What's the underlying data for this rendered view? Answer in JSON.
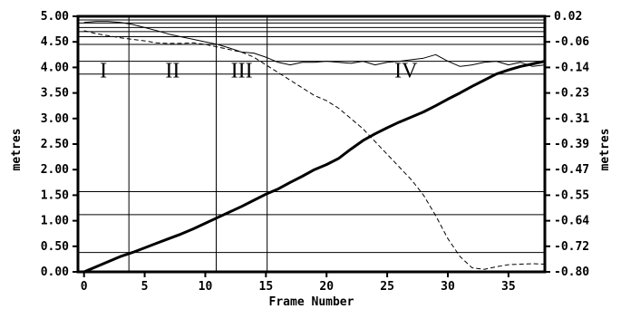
{
  "chart_data": {
    "type": "line",
    "xlabel": "Frame Number",
    "ylabel_left": "metres",
    "ylabel_right": "metres",
    "xlim": [
      -0.5,
      38
    ],
    "ylim_left": [
      0,
      5
    ],
    "ylim_right": [
      -0.8,
      0.02
    ],
    "x_ticks": [
      "0",
      "5",
      "10",
      "15",
      "20",
      "25",
      "30",
      "35"
    ],
    "y_ticks_left": [
      "0.00",
      "0.50",
      "1.00",
      "1.50",
      "2.00",
      "2.50",
      "3.00",
      "3.50",
      "4.00",
      "4.50",
      "5.00"
    ],
    "y_ticks_right": [
      "0.02",
      "-0.06",
      "-0.14",
      "-0.23",
      "-0.31",
      "-0.39",
      "-0.47",
      "-0.55",
      "-0.64",
      "-0.72",
      "-0.80"
    ],
    "phases": [
      {
        "label": "I",
        "x_start": -0.5,
        "x_end": 3.7
      },
      {
        "label": "II",
        "x_start": 3.7,
        "x_end": 10.9
      },
      {
        "label": "III",
        "x_start": 10.9,
        "x_end": 15.1
      },
      {
        "label": "IV",
        "x_start": 15.1,
        "x_end": 38
      }
    ],
    "phase_boundaries_x": [
      3.7,
      10.9,
      15.1
    ],
    "guide_lines_left_y": [
      0.38,
      1.12,
      1.57,
      3.87,
      4.12,
      4.45,
      4.6,
      4.7,
      4.78,
      4.87,
      4.93
    ],
    "series": [
      {
        "style": "thick-solid",
        "axis": "left",
        "x": [
          0,
          1,
          2,
          3,
          4,
          5,
          6,
          7,
          8,
          9,
          10,
          11,
          12,
          13,
          14,
          15,
          16,
          17,
          18,
          19,
          20,
          21,
          22,
          23,
          24,
          25,
          26,
          27,
          28,
          29,
          30,
          31,
          32,
          33,
          34,
          35,
          36,
          37,
          38
        ],
        "values": [
          0.0,
          0.1,
          0.2,
          0.3,
          0.38,
          0.47,
          0.56,
          0.65,
          0.74,
          0.84,
          0.95,
          1.06,
          1.17,
          1.28,
          1.4,
          1.52,
          1.62,
          1.75,
          1.87,
          2.0,
          2.1,
          2.22,
          2.4,
          2.57,
          2.7,
          2.82,
          2.93,
          3.03,
          3.13,
          3.25,
          3.38,
          3.5,
          3.63,
          3.75,
          3.87,
          3.95,
          4.02,
          4.07,
          4.12
        ]
      },
      {
        "style": "thin-solid",
        "axis": "left",
        "x": [
          0,
          1,
          2,
          3,
          4,
          5,
          6,
          7,
          8,
          9,
          10,
          11,
          12,
          13,
          14,
          15,
          16,
          17,
          18,
          19,
          20,
          21,
          22,
          23,
          24,
          25,
          26,
          27,
          28,
          29,
          30,
          31,
          32,
          33,
          34,
          35,
          36,
          37,
          38
        ],
        "values": [
          4.88,
          4.9,
          4.9,
          4.88,
          4.84,
          4.78,
          4.72,
          4.65,
          4.6,
          4.55,
          4.5,
          4.45,
          4.38,
          4.3,
          4.28,
          4.2,
          4.1,
          4.05,
          4.1,
          4.1,
          4.12,
          4.1,
          4.08,
          4.12,
          4.05,
          4.1,
          4.12,
          4.15,
          4.18,
          4.25,
          4.12,
          4.02,
          4.05,
          4.1,
          4.12,
          4.05,
          4.1,
          4.02,
          4.05
        ]
      },
      {
        "style": "thin-dashed",
        "axis": "left",
        "x": [
          0,
          1,
          2,
          3,
          4,
          5,
          6,
          7,
          8,
          9,
          10,
          11,
          12,
          13,
          14,
          15,
          16,
          17,
          18,
          19,
          20,
          21,
          22,
          23,
          24,
          25,
          26,
          27,
          28,
          29,
          30,
          31,
          32,
          33,
          34,
          35,
          36,
          37,
          38
        ],
        "values": [
          4.72,
          4.66,
          4.62,
          4.58,
          4.55,
          4.52,
          4.48,
          4.47,
          4.47,
          4.48,
          4.45,
          4.4,
          4.35,
          4.3,
          4.2,
          4.05,
          3.9,
          3.75,
          3.6,
          3.45,
          3.35,
          3.2,
          3.0,
          2.8,
          2.55,
          2.3,
          2.05,
          1.8,
          1.5,
          1.1,
          0.65,
          0.3,
          0.08,
          0.05,
          0.1,
          0.14,
          0.15,
          0.16,
          0.15
        ]
      }
    ]
  }
}
